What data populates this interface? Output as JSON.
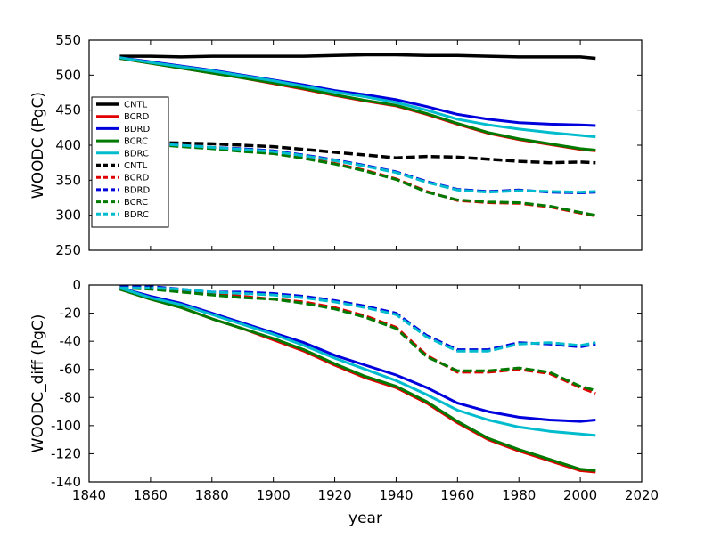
{
  "figure": {
    "background": "#ffffff",
    "axis_color": "#000000"
  },
  "chart_data": [
    {
      "type": "line",
      "title": "",
      "ylabel": "WOODC (PgC)",
      "xlabel": "",
      "xlim": [
        1840,
        2020
      ],
      "ylim": [
        250,
        550
      ],
      "xticks": [
        1840,
        1860,
        1880,
        1900,
        1920,
        1940,
        1960,
        1980,
        2000,
        2020
      ],
      "yticks": [
        250,
        300,
        350,
        400,
        450,
        500,
        550
      ],
      "show_xticklabels": false,
      "grid": false,
      "x": [
        1850,
        1860,
        1870,
        1880,
        1890,
        1900,
        1910,
        1920,
        1930,
        1940,
        1950,
        1960,
        1970,
        1980,
        1990,
        2000,
        2005
      ],
      "series": [
        {
          "name": "CNTL",
          "style": "solid",
          "color": "#000000",
          "lw": 3.5,
          "values": [
            527,
            527,
            526,
            527,
            527,
            527,
            527,
            528,
            529,
            529,
            528,
            528,
            527,
            526,
            526,
            526,
            524
          ]
        },
        {
          "name": "BCRD",
          "style": "solid",
          "color": "#e00000",
          "lw": 3,
          "values": [
            524,
            517,
            510,
            503,
            496,
            488,
            480,
            471,
            463,
            456,
            444,
            430,
            417,
            408,
            401,
            394,
            392
          ]
        },
        {
          "name": "BDRD",
          "style": "solid",
          "color": "#0000dd",
          "lw": 3,
          "values": [
            525,
            519,
            513,
            507,
            500,
            493,
            486,
            478,
            472,
            465,
            455,
            444,
            437,
            432,
            430,
            429,
            428
          ]
        },
        {
          "name": "BCRC",
          "style": "solid",
          "color": "#007a00",
          "lw": 3,
          "values": [
            524,
            517,
            510,
            503,
            496,
            489,
            481,
            472,
            464,
            457,
            445,
            431,
            418,
            409,
            402,
            395,
            393
          ]
        },
        {
          "name": "BDRC",
          "style": "solid",
          "color": "#00bccc",
          "lw": 3,
          "values": [
            525,
            518,
            512,
            506,
            499,
            492,
            484,
            476,
            469,
            461,
            450,
            437,
            429,
            423,
            418,
            414,
            412
          ]
        },
        {
          "name": "CNTL",
          "style": "dashed",
          "color": "#000000",
          "lw": 3.5,
          "values": [
            406,
            404,
            403,
            402,
            400,
            398,
            394,
            390,
            386,
            382,
            384,
            383,
            380,
            377,
            375,
            376,
            375
          ]
        },
        {
          "name": "BCRD",
          "style": "dashed",
          "color": "#e00000",
          "lw": 3,
          "values": [
            405,
            402,
            399,
            396,
            392,
            388,
            382,
            374,
            364,
            352,
            334,
            321,
            318,
            317,
            312,
            303,
            299
          ]
        },
        {
          "name": "BDRD",
          "style": "dashed",
          "color": "#0000dd",
          "lw": 3,
          "values": [
            405,
            403,
            400,
            397,
            395,
            392,
            386,
            379,
            371,
            362,
            348,
            337,
            334,
            336,
            333,
            332,
            333
          ]
        },
        {
          "name": "BCRC",
          "style": "dashed",
          "color": "#007a00",
          "lw": 3,
          "values": [
            404,
            401,
            398,
            395,
            391,
            388,
            381,
            373,
            363,
            351,
            333,
            322,
            319,
            318,
            313,
            304,
            300
          ]
        },
        {
          "name": "BDRC",
          "style": "dashed",
          "color": "#00bccc",
          "lw": 3,
          "values": [
            404,
            402,
            400,
            397,
            394,
            391,
            385,
            378,
            370,
            361,
            347,
            336,
            333,
            335,
            334,
            333,
            334
          ]
        }
      ],
      "legend": {
        "position": "upper-left",
        "entries": [
          {
            "label": "CNTL",
            "style": "solid",
            "color": "#000000"
          },
          {
            "label": "BCRD",
            "style": "solid",
            "color": "#e00000"
          },
          {
            "label": "BDRD",
            "style": "solid",
            "color": "#0000dd"
          },
          {
            "label": "BCRC",
            "style": "solid",
            "color": "#007a00"
          },
          {
            "label": "BDRC",
            "style": "solid",
            "color": "#00bccc"
          },
          {
            "label": "CNTL",
            "style": "dashed",
            "color": "#000000"
          },
          {
            "label": "BCRD",
            "style": "dashed",
            "color": "#e00000"
          },
          {
            "label": "BDRD",
            "style": "dashed",
            "color": "#0000dd"
          },
          {
            "label": "BCRC",
            "style": "dashed",
            "color": "#007a00"
          },
          {
            "label": "BDRC",
            "style": "dashed",
            "color": "#00bccc"
          }
        ]
      }
    },
    {
      "type": "line",
      "title": "",
      "ylabel": "WOODC_diff (PgC)",
      "xlabel": "year",
      "xlim": [
        1840,
        2020
      ],
      "ylim": [
        -140,
        0
      ],
      "xticks": [
        1840,
        1860,
        1880,
        1900,
        1920,
        1940,
        1960,
        1980,
        2000,
        2020
      ],
      "yticks": [
        -140,
        -120,
        -100,
        -80,
        -60,
        -40,
        -20,
        0
      ],
      "show_xticklabels": true,
      "grid": false,
      "x": [
        1850,
        1860,
        1870,
        1880,
        1890,
        1900,
        1910,
        1920,
        1930,
        1940,
        1950,
        1960,
        1970,
        1980,
        1990,
        2000,
        2005
      ],
      "series": [
        {
          "name": "BCRD",
          "style": "solid",
          "color": "#e00000",
          "lw": 3,
          "values": [
            -3,
            -10,
            -16,
            -24,
            -31,
            -39,
            -47,
            -57,
            -66,
            -73,
            -84,
            -98,
            -110,
            -118,
            -125,
            -132,
            -133
          ]
        },
        {
          "name": "BDRD",
          "style": "solid",
          "color": "#0000dd",
          "lw": 3,
          "values": [
            -2,
            -8,
            -13,
            -20,
            -27,
            -34,
            -41,
            -50,
            -57,
            -64,
            -73,
            -84,
            -90,
            -94,
            -96,
            -97,
            -96
          ]
        },
        {
          "name": "BCRC",
          "style": "solid",
          "color": "#007a00",
          "lw": 3,
          "values": [
            -3,
            -10,
            -16,
            -24,
            -31,
            -38,
            -46,
            -56,
            -65,
            -72,
            -83,
            -97,
            -109,
            -117,
            -124,
            -131,
            -132
          ]
        },
        {
          "name": "BDRC",
          "style": "solid",
          "color": "#00bccc",
          "lw": 3,
          "values": [
            -2,
            -9,
            -14,
            -21,
            -28,
            -35,
            -43,
            -52,
            -60,
            -68,
            -78,
            -89,
            -96,
            -101,
            -104,
            -106,
            -107
          ]
        },
        {
          "name": "BCRD",
          "style": "dashed",
          "color": "#e00000",
          "lw": 3,
          "values": [
            -1,
            -2,
            -4,
            -6,
            -8,
            -10,
            -12,
            -16,
            -22,
            -30,
            -50,
            -62,
            -62,
            -60,
            -63,
            -73,
            -77
          ]
        },
        {
          "name": "BDRD",
          "style": "dashed",
          "color": "#0000dd",
          "lw": 3,
          "values": [
            -1,
            -1,
            -3,
            -5,
            -5,
            -6,
            -8,
            -11,
            -15,
            -20,
            -36,
            -46,
            -46,
            -41,
            -42,
            -44,
            -42
          ]
        },
        {
          "name": "BCRC",
          "style": "dashed",
          "color": "#007a00",
          "lw": 3,
          "values": [
            -2,
            -3,
            -5,
            -7,
            -9,
            -10,
            -13,
            -17,
            -23,
            -31,
            -51,
            -61,
            -61,
            -59,
            -62,
            -72,
            -75
          ]
        },
        {
          "name": "BDRC",
          "style": "dashed",
          "color": "#00bccc",
          "lw": 3,
          "values": [
            -2,
            -2,
            -3,
            -5,
            -6,
            -7,
            -9,
            -12,
            -16,
            -21,
            -37,
            -47,
            -47,
            -42,
            -41,
            -43,
            -41
          ]
        }
      ]
    }
  ]
}
